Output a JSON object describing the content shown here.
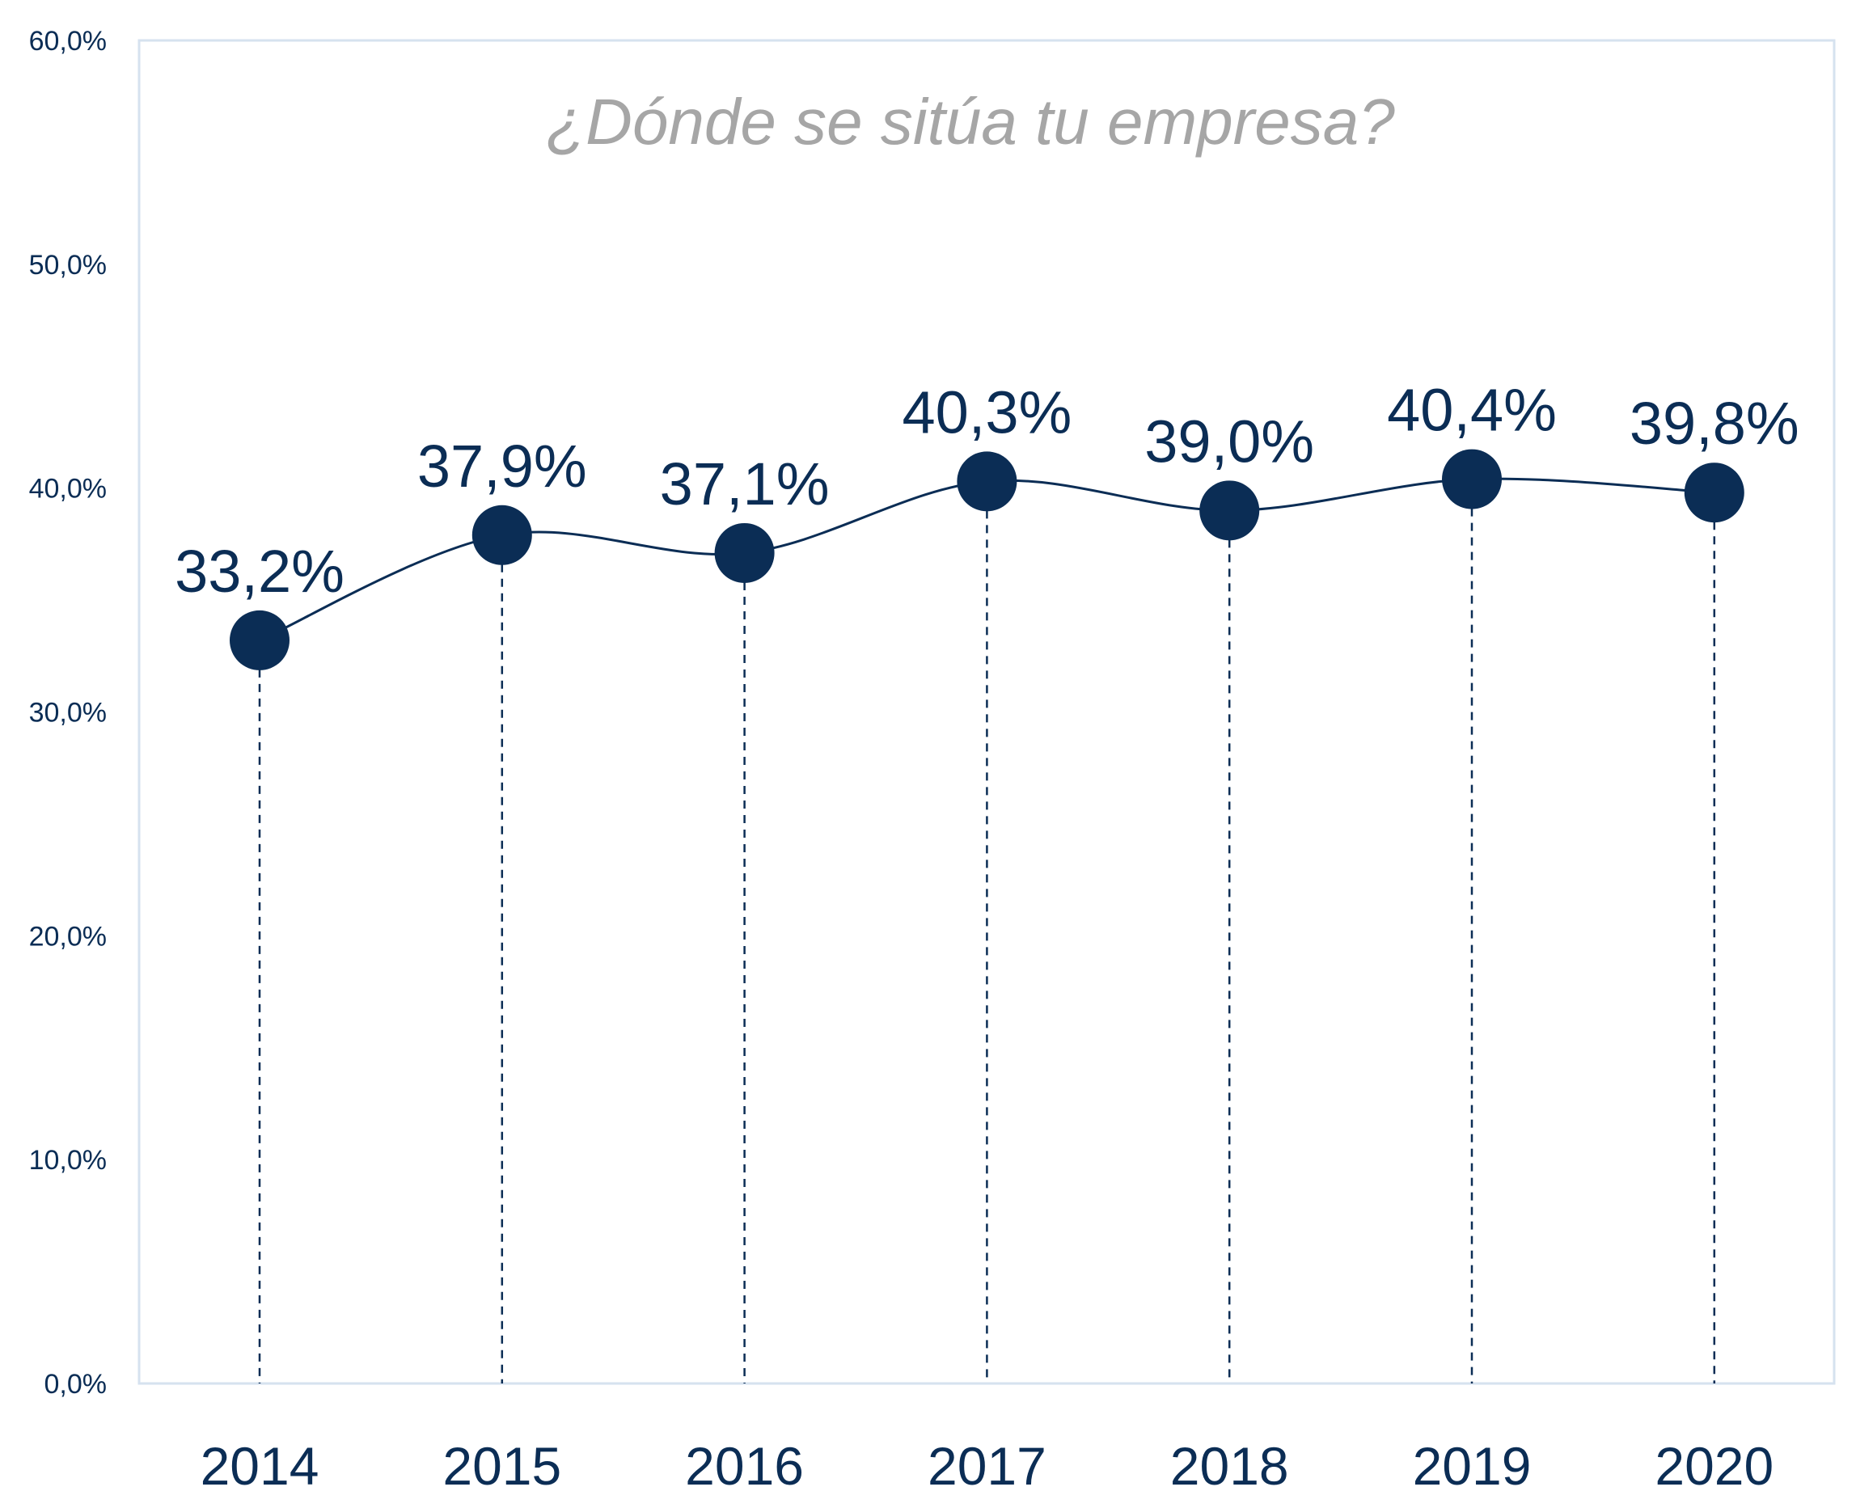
{
  "chart_data": {
    "type": "line",
    "title": "¿Dónde se sitúa tu empresa?",
    "xlabel": "",
    "ylabel": "",
    "categories": [
      "2014",
      "2015",
      "2016",
      "2017",
      "2018",
      "2019",
      "2020"
    ],
    "values": [
      33.2,
      37.9,
      37.1,
      40.3,
      39.0,
      40.4,
      39.8
    ],
    "data_labels": [
      "33,2%",
      "37,9%",
      "37,1%",
      "40,3%",
      "39,0%",
      "40,4%",
      "39,8%"
    ],
    "ylim": [
      0,
      60
    ],
    "yticks": [
      0,
      10,
      20,
      30,
      40,
      50,
      60
    ],
    "ytick_labels": [
      "0,0%",
      "10,0%",
      "20,0%",
      "30,0%",
      "40,0%",
      "50,0%",
      "60,0%"
    ],
    "grid": false,
    "drop_lines": true,
    "smooth": true,
    "legend": "none"
  },
  "colors": {
    "series": "#0b2d55",
    "title": "#a6a6a6",
    "axis_text": "#0b2d55",
    "plot_border": "#d6e2ef",
    "background": "#ffffff"
  }
}
